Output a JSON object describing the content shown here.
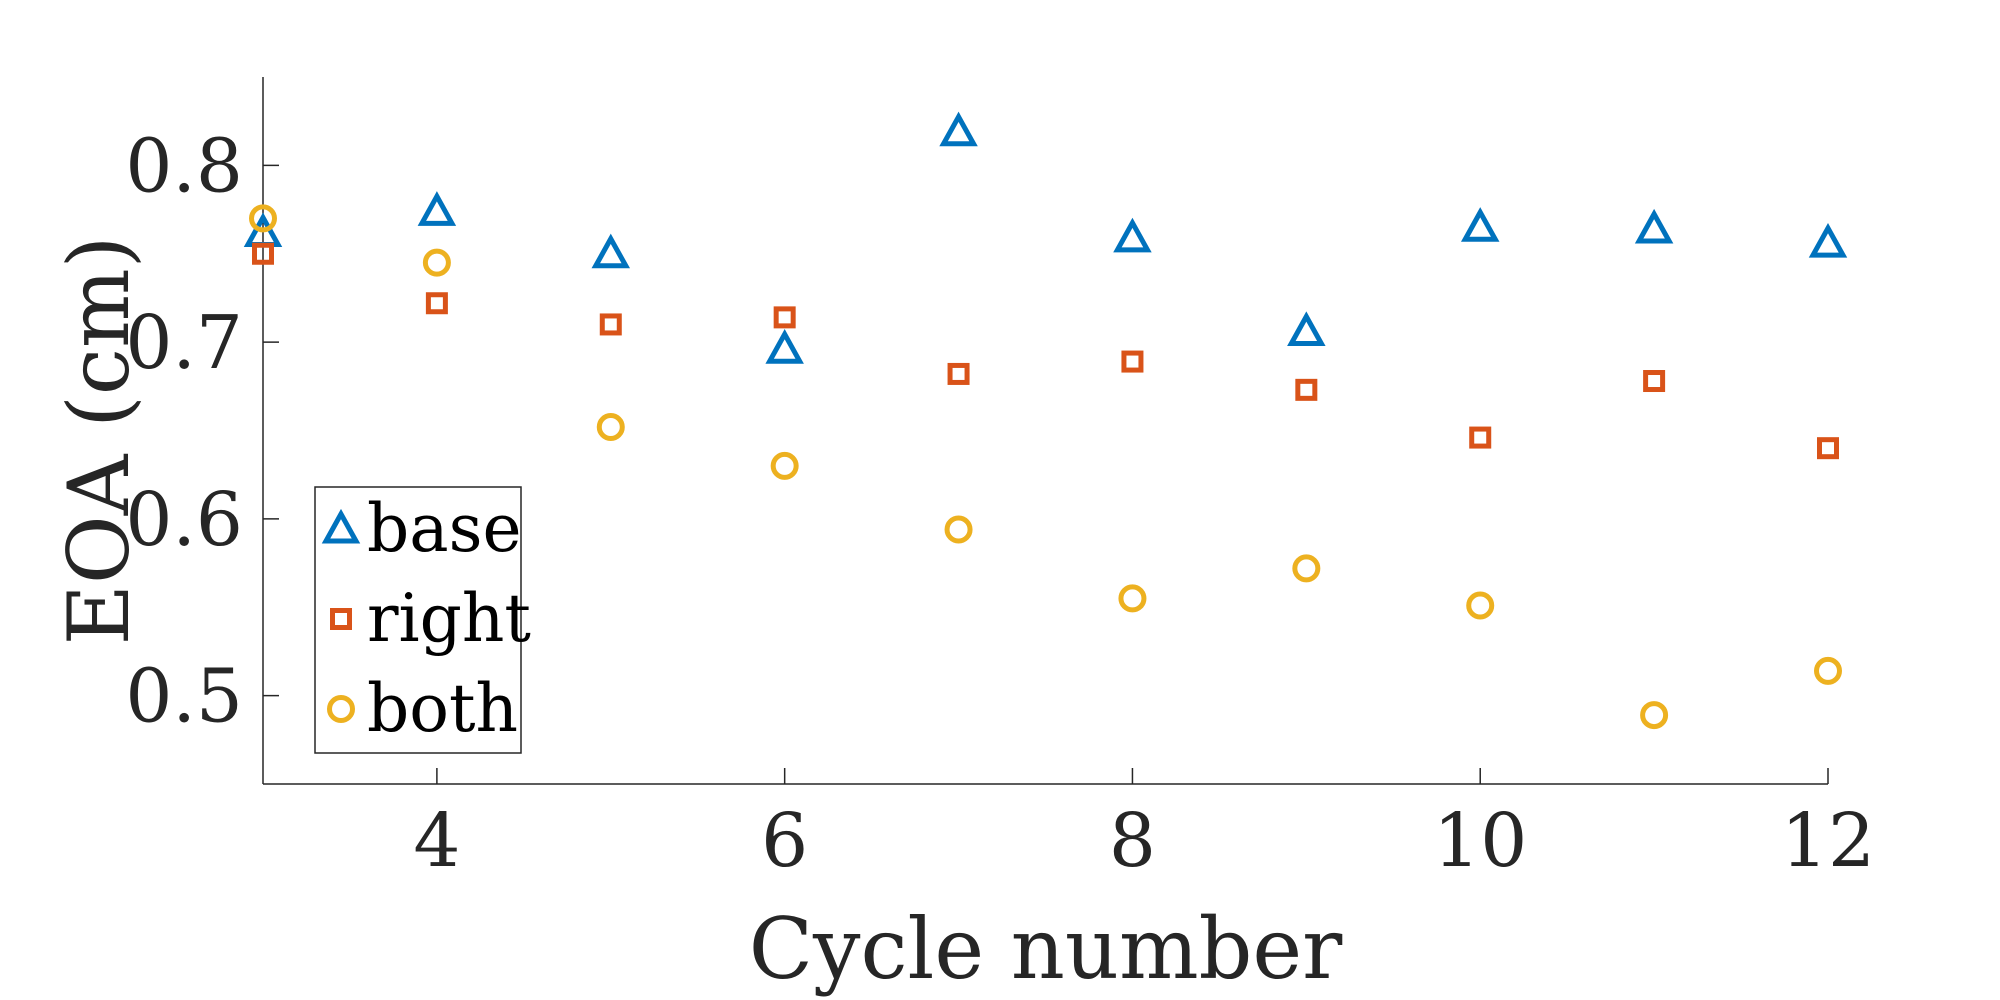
{
  "chart_data": {
    "type": "scatter",
    "title": "",
    "xlabel": "Cycle number",
    "ylabel": "EOA (cm)",
    "xlim": [
      3,
      12
    ],
    "ylim": [
      0.45,
      0.85
    ],
    "xticks": [
      4,
      6,
      8,
      10,
      12
    ],
    "yticks": [
      0.5,
      0.6,
      0.7,
      0.8
    ],
    "xtick_labels": [
      "4",
      "6",
      "8",
      "10",
      "12"
    ],
    "ytick_labels": [
      "0.5",
      "0.6",
      "0.7",
      "0.8"
    ],
    "x": [
      3,
      4,
      5,
      6,
      7,
      8,
      9,
      10,
      11,
      12
    ],
    "legend_position": "lower-left",
    "series": [
      {
        "name": "base",
        "marker": "triangle",
        "color": "#0072BD",
        "values": [
          0.762,
          0.774,
          0.75,
          0.696,
          0.819,
          0.759,
          0.706,
          0.765,
          0.764,
          0.756
        ]
      },
      {
        "name": "right",
        "marker": "square",
        "color": "#D95319",
        "values": [
          0.75,
          0.722,
          0.71,
          0.714,
          0.682,
          0.689,
          0.673,
          0.646,
          0.678,
          0.64
        ]
      },
      {
        "name": "both",
        "marker": "circle",
        "color": "#EDB120",
        "values": [
          0.77,
          0.745,
          0.652,
          0.63,
          0.594,
          0.555,
          0.572,
          0.551,
          0.489,
          0.514
        ]
      }
    ]
  }
}
